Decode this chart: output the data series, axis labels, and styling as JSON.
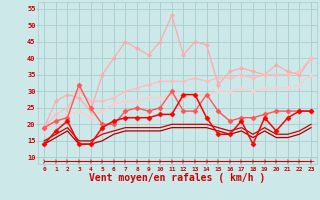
{
  "background_color": "#cce8e8",
  "grid_color": "#aacccc",
  "xlabel": "Vent moyen/en rafales ( km/h )",
  "xlabel_color": "#cc0000",
  "xlabel_fontsize": 7,
  "xtick_color": "#cc0000",
  "ytick_color": "#cc0000",
  "xlim": [
    -0.5,
    23.5
  ],
  "ylim": [
    8,
    57
  ],
  "yticks": [
    10,
    15,
    20,
    25,
    30,
    35,
    40,
    45,
    50,
    55
  ],
  "xticks": [
    0,
    1,
    2,
    3,
    4,
    5,
    6,
    7,
    8,
    9,
    10,
    11,
    12,
    13,
    14,
    15,
    16,
    17,
    18,
    19,
    20,
    21,
    22,
    23
  ],
  "lines": [
    {
      "x": [
        0,
        1,
        2,
        3,
        4,
        5,
        6,
        7,
        8,
        9,
        10,
        11,
        12,
        13,
        14,
        15,
        16,
        17,
        18,
        19,
        20,
        21,
        22,
        23
      ],
      "y": [
        19,
        27,
        29,
        28,
        24,
        35,
        40,
        45,
        43,
        41,
        45,
        53,
        41,
        45,
        44,
        32,
        36,
        37,
        36,
        35,
        38,
        36,
        35,
        40
      ],
      "color": "#ffaaaa",
      "lw": 0.9,
      "marker": "D",
      "markersize": 2.0,
      "zorder": 2
    },
    {
      "x": [
        0,
        1,
        2,
        3,
        4,
        5,
        6,
        7,
        8,
        9,
        10,
        11,
        12,
        13,
        14,
        15,
        16,
        17,
        18,
        19,
        20,
        21,
        22,
        23
      ],
      "y": [
        19,
        23,
        25,
        30,
        27,
        27,
        28,
        30,
        31,
        32,
        33,
        33,
        33,
        34,
        33,
        34,
        34,
        35,
        34,
        35,
        35,
        35,
        36,
        40
      ],
      "color": "#ffbbbb",
      "lw": 0.9,
      "marker": "D",
      "markersize": 2.0,
      "zorder": 2
    },
    {
      "x": [
        0,
        1,
        2,
        3,
        4,
        5,
        6,
        7,
        8,
        9,
        10,
        11,
        12,
        13,
        14,
        15,
        16,
        17,
        18,
        19,
        20,
        21,
        22,
        23
      ],
      "y": [
        18,
        21,
        23,
        24,
        22,
        24,
        26,
        27,
        27,
        28,
        28,
        29,
        28,
        29,
        29,
        30,
        30,
        31,
        30,
        31,
        31,
        31,
        32,
        35
      ],
      "color": "#ffcccc",
      "lw": 0.9,
      "marker": "D",
      "markersize": 2.0,
      "zorder": 2
    },
    {
      "x": [
        0,
        1,
        2,
        3,
        4,
        5,
        6,
        7,
        8,
        9,
        10,
        11,
        12,
        13,
        14,
        15,
        16,
        17,
        18,
        19,
        20,
        21,
        22,
        23
      ],
      "y": [
        19,
        21,
        22,
        32,
        25,
        20,
        20,
        24,
        25,
        24,
        25,
        30,
        24,
        24,
        29,
        24,
        21,
        22,
        22,
        23,
        24,
        24,
        24,
        24
      ],
      "color": "#ff5555",
      "lw": 1.0,
      "marker": "D",
      "markersize": 2.5,
      "zorder": 3
    },
    {
      "x": [
        0,
        1,
        2,
        3,
        4,
        5,
        6,
        7,
        8,
        9,
        10,
        11,
        12,
        13,
        14,
        15,
        16,
        17,
        18,
        19,
        20,
        21,
        22,
        23
      ],
      "y": [
        14,
        18,
        21,
        14,
        14,
        19,
        21,
        22,
        22,
        22,
        23,
        23,
        29,
        29,
        22,
        17,
        17,
        21,
        14,
        22,
        18,
        22,
        24,
        24
      ],
      "color": "#ff0000",
      "lw": 1.1,
      "marker": "D",
      "markersize": 2.5,
      "zorder": 5
    },
    {
      "x": [
        0,
        1,
        2,
        3,
        4,
        5,
        6,
        7,
        8,
        9,
        10,
        11,
        12,
        13,
        14,
        15,
        16,
        17,
        18,
        19,
        20,
        21,
        22,
        23
      ],
      "y": [
        15,
        17,
        19,
        15,
        15,
        17,
        18,
        19,
        19,
        19,
        19,
        20,
        20,
        20,
        20,
        19,
        18,
        19,
        17,
        19,
        17,
        17,
        18,
        20
      ],
      "color": "#cc0000",
      "lw": 0.9,
      "marker": null,
      "markersize": 0,
      "zorder": 3
    },
    {
      "x": [
        0,
        1,
        2,
        3,
        4,
        5,
        6,
        7,
        8,
        9,
        10,
        11,
        12,
        13,
        14,
        15,
        16,
        17,
        18,
        19,
        20,
        21,
        22,
        23
      ],
      "y": [
        14,
        16,
        18,
        14,
        14,
        15,
        17,
        18,
        18,
        18,
        18,
        19,
        19,
        19,
        19,
        18,
        17,
        18,
        16,
        18,
        16,
        16,
        17,
        19
      ],
      "color": "#aa0000",
      "lw": 0.9,
      "marker": null,
      "markersize": 0,
      "zorder": 3
    },
    {
      "x": [
        0,
        1,
        2,
        3,
        4,
        5,
        6,
        7,
        8,
        9,
        10,
        11,
        12,
        13,
        14,
        15,
        16,
        17,
        18,
        19,
        20,
        21,
        22,
        23
      ],
      "y": [
        9,
        9,
        9,
        9,
        9,
        9,
        9,
        9,
        9,
        9,
        9,
        9,
        9,
        9,
        9,
        9,
        9,
        9,
        9,
        9,
        9,
        9,
        9,
        9
      ],
      "color": "#cc0000",
      "lw": 0.8,
      "marker": "4",
      "markersize": 4,
      "zorder": 5
    }
  ]
}
